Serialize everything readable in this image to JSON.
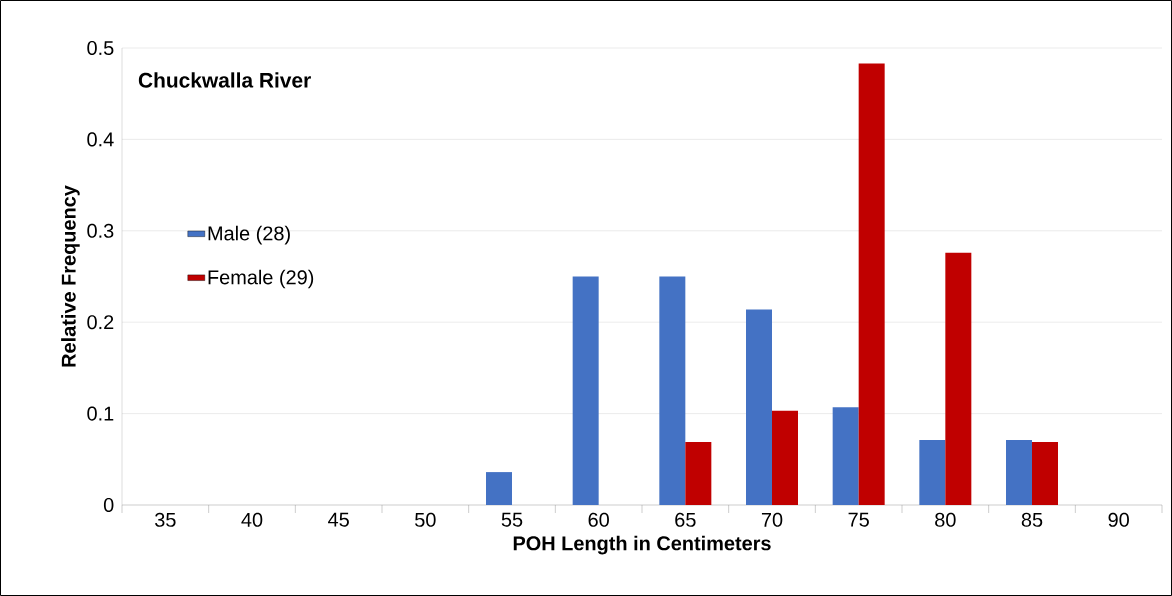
{
  "chart_data": {
    "type": "bar",
    "title": "Chuckwalla River",
    "xlabel": "POH Length in Centimeters",
    "ylabel": "Relative Frequency",
    "categories": [
      "35",
      "40",
      "45",
      "50",
      "55",
      "60",
      "65",
      "70",
      "75",
      "80",
      "85",
      "90"
    ],
    "series": [
      {
        "name": "Male (28)",
        "color": "#4472c4",
        "values": [
          0,
          0,
          0,
          0,
          0.036,
          0.25,
          0.25,
          0.214,
          0.107,
          0.071,
          0.071,
          0
        ]
      },
      {
        "name": "Female (29)",
        "color": "#c00000",
        "values": [
          0,
          0,
          0,
          0,
          0,
          0,
          0.069,
          0.103,
          0.483,
          0.276,
          0.069,
          0
        ]
      }
    ],
    "ylim": [
      0,
      0.5
    ],
    "yticks": [
      0,
      0.1,
      0.2,
      0.3,
      0.4,
      0.5
    ],
    "grid": "y",
    "legend": "left"
  }
}
